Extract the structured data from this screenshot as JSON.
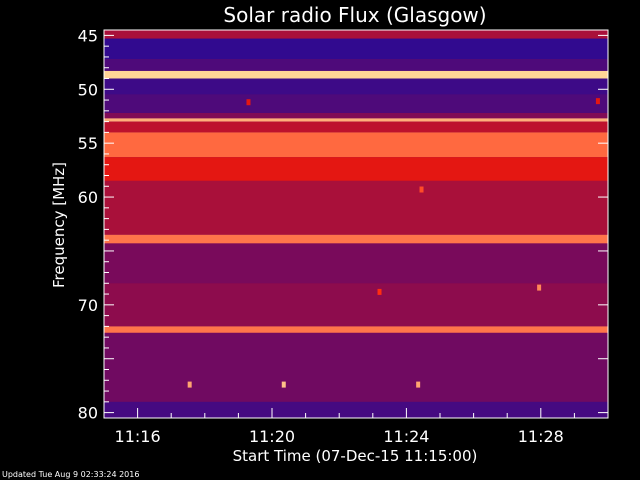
{
  "chart_data": {
    "type": "heatmap",
    "title": "Solar radio Flux (Glasgow)",
    "xlabel": "Start Time (07-Dec-15 11:15:00)",
    "ylabel": "Frequency [MHz]",
    "x_ticks": [
      "11:16",
      "11:20",
      "11:24",
      "11:28"
    ],
    "x_tick_minutes": [
      1,
      5,
      9,
      13
    ],
    "x_range_minutes": [
      0,
      15
    ],
    "y_ticks": [
      45,
      50,
      55,
      60,
      65,
      70,
      75,
      80
    ],
    "y_tick_labels": [
      "45",
      "50",
      "55",
      "60",
      "",
      "70",
      "",
      "80"
    ],
    "y_range": [
      44.5,
      80.5
    ],
    "colors": {
      "background": "#000000",
      "low": "#1a0aa0",
      "mid": "#7a0a5a",
      "high": "#ff1a00",
      "peak": "#ffe0a0"
    },
    "bands": [
      {
        "from": 44.5,
        "to": 45.3,
        "level": 0.45
      },
      {
        "from": 45.3,
        "to": 47.2,
        "level": 0.08
      },
      {
        "from": 47.2,
        "to": 48.3,
        "level": 0.18
      },
      {
        "from": 48.3,
        "to": 49.0,
        "level": 0.98
      },
      {
        "from": 49.0,
        "to": 50.5,
        "level": 0.12
      },
      {
        "from": 50.5,
        "to": 52.2,
        "level": 0.18
      },
      {
        "from": 52.2,
        "to": 52.7,
        "level": 0.35
      },
      {
        "from": 52.7,
        "to": 53.0,
        "level": 0.92
      },
      {
        "from": 53.0,
        "to": 54.0,
        "level": 0.5
      },
      {
        "from": 54.0,
        "to": 56.3,
        "level": 0.8
      },
      {
        "from": 56.3,
        "to": 58.5,
        "level": 0.6
      },
      {
        "from": 58.5,
        "to": 63.5,
        "level": 0.45
      },
      {
        "from": 63.5,
        "to": 64.3,
        "level": 0.82
      },
      {
        "from": 64.3,
        "to": 68.0,
        "level": 0.33
      },
      {
        "from": 68.0,
        "to": 72.0,
        "level": 0.38
      },
      {
        "from": 72.0,
        "to": 72.6,
        "level": 0.82
      },
      {
        "from": 72.6,
        "to": 79.0,
        "level": 0.3
      },
      {
        "from": 79.0,
        "to": 80.5,
        "level": 0.15
      }
    ],
    "spots": [
      {
        "t": 9.45,
        "f": 59.3,
        "level": 0.75
      },
      {
        "t": 2.55,
        "f": 77.4,
        "level": 0.9
      },
      {
        "t": 5.35,
        "f": 77.4,
        "level": 0.95
      },
      {
        "t": 9.35,
        "f": 77.4,
        "level": 0.9
      },
      {
        "t": 12.95,
        "f": 68.4,
        "level": 0.85
      },
      {
        "t": 8.2,
        "f": 68.8,
        "level": 0.7
      },
      {
        "t": 4.3,
        "f": 51.2,
        "level": 0.6
      },
      {
        "t": 14.7,
        "f": 51.1,
        "level": 0.6
      }
    ],
    "updated": "Updated Tue Aug  9 02:33:24 2016"
  }
}
